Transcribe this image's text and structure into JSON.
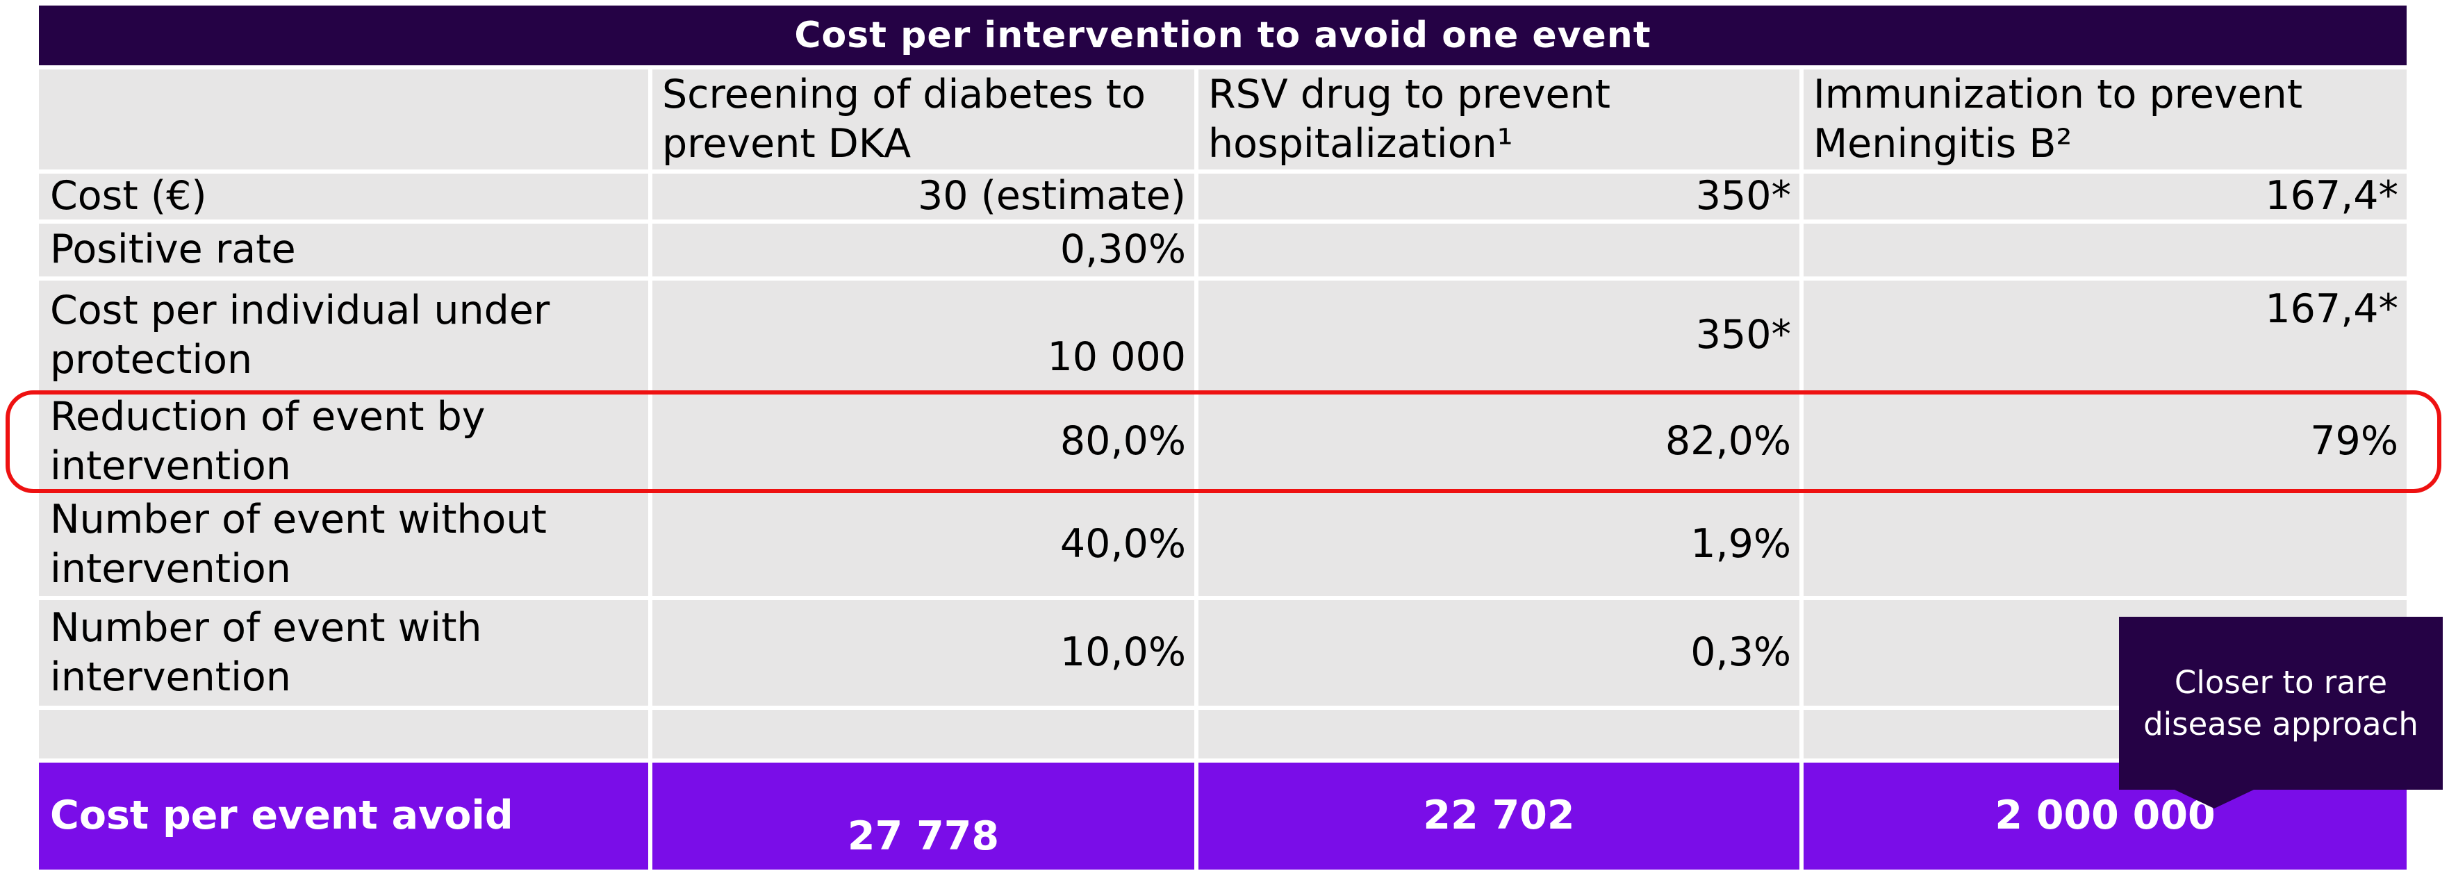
{
  "table": {
    "title": "Cost per intervention to avoid one event",
    "columns": [
      "Screening of diabetes to prevent DKA",
      "RSV drug to prevent hospitalization¹",
      "Immunization to prevent Meningitis B²"
    ],
    "rows": [
      {
        "label": "Cost (€)",
        "values": [
          "30 (estimate)",
          "350*",
          "167,4*"
        ]
      },
      {
        "label": "Positive rate",
        "values": [
          "0,30%",
          "",
          ""
        ]
      },
      {
        "label": "Cost per individual under protection",
        "values": [
          "10 000",
          "350*",
          "167,4*"
        ]
      },
      {
        "label": "Reduction of event by intervention",
        "values": [
          "80,0%",
          "82,0%",
          "79%"
        ],
        "highlighted": true
      },
      {
        "label": "Number of event without intervention",
        "values": [
          "40,0%",
          "1,9%",
          ""
        ]
      },
      {
        "label": "Number of event with intervention",
        "values": [
          "10,0%",
          "0,3%",
          ""
        ]
      }
    ],
    "footer": {
      "label": "Cost per event avoid",
      "values": [
        "27 778",
        "22 702",
        "2 000 000"
      ]
    }
  },
  "callout": {
    "text": "Closer to rare disease approach"
  },
  "colors": {
    "header_purple": "#250245",
    "footer_purple": "#7A0DE8",
    "cell_gray": "#E7E6E6",
    "highlight_red": "#EE1111",
    "text_dark": "#000000",
    "text_light": "#FFFFFF"
  }
}
